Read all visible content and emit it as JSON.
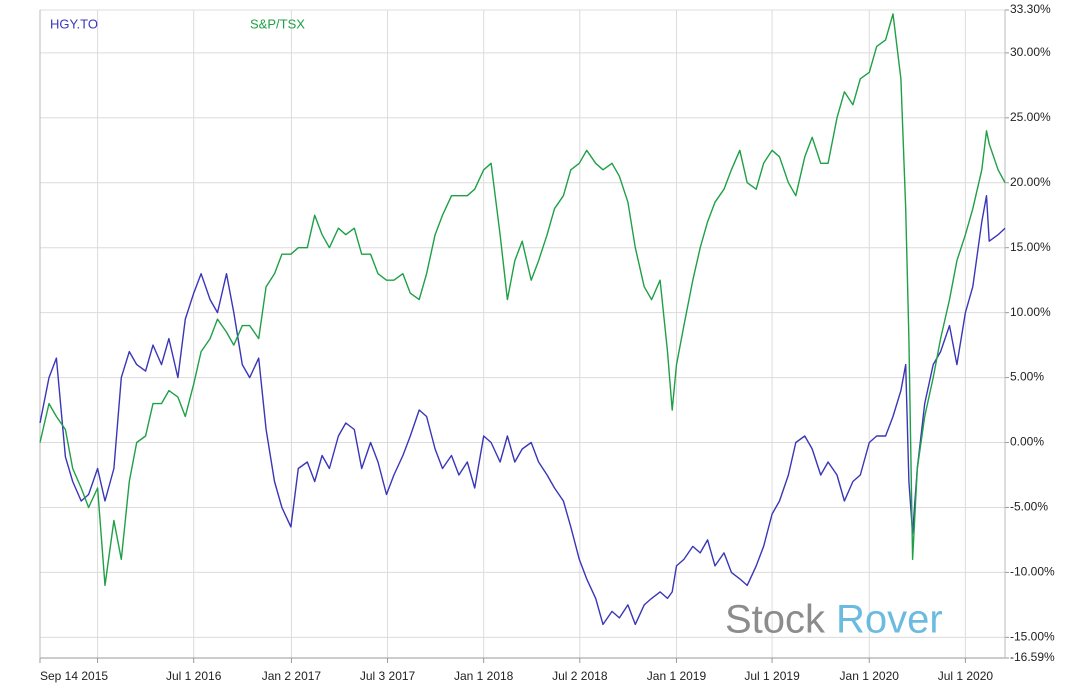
{
  "chart_data": {
    "type": "line",
    "x": [
      "2015-09-14",
      "2015-10-01",
      "2015-10-15",
      "2015-11-01",
      "2015-11-15",
      "2015-12-01",
      "2015-12-15",
      "2016-01-01",
      "2016-01-15",
      "2016-02-01",
      "2016-02-15",
      "2016-03-01",
      "2016-03-15",
      "2016-04-01",
      "2016-04-15",
      "2016-05-01",
      "2016-05-15",
      "2016-06-01",
      "2016-06-15",
      "2016-07-01",
      "2016-07-15",
      "2016-08-01",
      "2016-08-15",
      "2016-09-01",
      "2016-09-15",
      "2016-10-01",
      "2016-10-15",
      "2016-11-01",
      "2016-11-15",
      "2016-12-01",
      "2016-12-15",
      "2017-01-01",
      "2017-01-15",
      "2017-02-01",
      "2017-02-15",
      "2017-03-01",
      "2017-03-15",
      "2017-04-01",
      "2017-04-15",
      "2017-05-01",
      "2017-05-15",
      "2017-06-01",
      "2017-06-15",
      "2017-07-01",
      "2017-07-15",
      "2017-08-01",
      "2017-08-15",
      "2017-09-01",
      "2017-09-15",
      "2017-10-01",
      "2017-10-15",
      "2017-11-01",
      "2017-11-15",
      "2017-12-01",
      "2017-12-15",
      "2018-01-01",
      "2018-01-15",
      "2018-02-01",
      "2018-02-15",
      "2018-03-01",
      "2018-03-15",
      "2018-04-01",
      "2018-04-15",
      "2018-05-01",
      "2018-05-15",
      "2018-06-01",
      "2018-06-15",
      "2018-07-01",
      "2018-07-15",
      "2018-08-01",
      "2018-08-15",
      "2018-09-01",
      "2018-09-15",
      "2018-10-01",
      "2018-10-15",
      "2018-11-01",
      "2018-11-15",
      "2018-12-01",
      "2018-12-15",
      "2018-12-24",
      "2019-01-01",
      "2019-01-15",
      "2019-02-01",
      "2019-02-15",
      "2019-03-01",
      "2019-03-15",
      "2019-04-01",
      "2019-04-15",
      "2019-05-01",
      "2019-05-15",
      "2019-06-01",
      "2019-06-15",
      "2019-07-01",
      "2019-07-15",
      "2019-08-01",
      "2019-08-15",
      "2019-09-01",
      "2019-09-15",
      "2019-10-01",
      "2019-10-15",
      "2019-11-01",
      "2019-11-15",
      "2019-12-01",
      "2019-12-15",
      "2020-01-01",
      "2020-01-15",
      "2020-02-01",
      "2020-02-15",
      "2020-03-01",
      "2020-03-10",
      "2020-03-16",
      "2020-03-23",
      "2020-04-01",
      "2020-04-15",
      "2020-05-01",
      "2020-05-15",
      "2020-06-01",
      "2020-06-15",
      "2020-07-01",
      "2020-07-15",
      "2020-08-01",
      "2020-08-10",
      "2020-08-15",
      "2020-09-01",
      "2020-09-14"
    ],
    "series": [
      {
        "name": "HGY.TO",
        "color": "#3a36b8",
        "values": [
          1.5,
          5,
          6.5,
          -1.1,
          -3,
          -4.5,
          -4,
          -2,
          -4.5,
          -2,
          5,
          7,
          6,
          5.5,
          7.5,
          6,
          8,
          5,
          9.5,
          11.5,
          13,
          11,
          10,
          13,
          10,
          6,
          5,
          6.5,
          1,
          -3,
          -5,
          -6.5,
          -2,
          -1.5,
          -3,
          -1,
          -2,
          0.5,
          1.5,
          1,
          -2,
          0,
          -1.5,
          -4,
          -2.5,
          -1,
          0.5,
          2.5,
          2,
          -0.5,
          -2,
          -1,
          -2.5,
          -1.5,
          -3.5,
          0.5,
          0,
          -1.5,
          0.5,
          -1.5,
          -0.5,
          0,
          -1.5,
          -2.5,
          -3.5,
          -4.5,
          -6.5,
          -9,
          -10.5,
          -12,
          -14,
          -13,
          -13.5,
          -12.5,
          -14,
          -12.5,
          -12,
          -11.5,
          -12,
          -11.5,
          -9.5,
          -9,
          -8,
          -8.5,
          -7.5,
          -9.5,
          -8.5,
          -10,
          -10.5,
          -11,
          -9.5,
          -8,
          -5.5,
          -4.5,
          -2.5,
          0,
          0.5,
          -0.5,
          -2.5,
          -1.5,
          -2.5,
          -4.5,
          -3,
          -2.5,
          0,
          0.5,
          0.5,
          2,
          4,
          6,
          -3,
          -7,
          -2,
          3,
          6,
          7,
          9,
          6,
          10,
          12,
          17,
          19,
          15.5,
          16,
          16.5
        ]
      },
      {
        "name": "S&P/TSX",
        "color": "#1fa046",
        "values": [
          0,
          3,
          2,
          1,
          -2,
          -3.5,
          -5,
          -3.5,
          -11,
          -6,
          -9,
          -3,
          0,
          0.5,
          3,
          3,
          4,
          3.5,
          2,
          4.5,
          7,
          8,
          9.5,
          8.5,
          7.5,
          9,
          9,
          8,
          12,
          13,
          14.5,
          14.5,
          15,
          15,
          17.5,
          16,
          15,
          16.5,
          16,
          16.5,
          14.5,
          14.5,
          13,
          12.5,
          12.5,
          13,
          11.5,
          11,
          13,
          16,
          17.5,
          19,
          19,
          19,
          19.5,
          21,
          21.5,
          16,
          11,
          14,
          15.5,
          12.5,
          14,
          16,
          18,
          19,
          21,
          21.5,
          22.5,
          21.5,
          21,
          21.5,
          20.5,
          18.5,
          15,
          12,
          11,
          12.5,
          7,
          2.5,
          6,
          9,
          12.5,
          15,
          17,
          18.5,
          19.5,
          21,
          22.5,
          20,
          19.5,
          21.5,
          22.5,
          22,
          20,
          19,
          22,
          23.5,
          21.5,
          21.5,
          25,
          27,
          26,
          28,
          28.5,
          30.5,
          31,
          33,
          28,
          18,
          8,
          -9,
          -2,
          2,
          5,
          8,
          11,
          14,
          16,
          18,
          21,
          24,
          23,
          21,
          20
        ]
      }
    ],
    "xlim": [
      "2015-09-14",
      "2020-09-14"
    ],
    "xticks": [
      {
        "value": "2015-09-14",
        "label": "Sep 14 2015"
      },
      {
        "value": "2016-01-01",
        "label": null
      },
      {
        "value": "2016-07-01",
        "label": "Jul 1 2016"
      },
      {
        "value": "2017-01-02",
        "label": "Jan 2 2017"
      },
      {
        "value": "2017-07-03",
        "label": "Jul 3 2017"
      },
      {
        "value": "2018-01-01",
        "label": "Jan 1 2018"
      },
      {
        "value": "2018-07-02",
        "label": "Jul 2 2018"
      },
      {
        "value": "2019-01-01",
        "label": "Jan 1 2019"
      },
      {
        "value": "2019-07-01",
        "label": "Jul 1 2019"
      },
      {
        "value": "2020-01-01",
        "label": "Jan 1 2020"
      },
      {
        "value": "2020-07-01",
        "label": "Jul 1 2020"
      }
    ],
    "ylim": [
      -16.59,
      33.3
    ],
    "yticks": [
      {
        "value": -16.59,
        "label": "-16.59%"
      },
      {
        "value": -15,
        "label": "-15.00%"
      },
      {
        "value": -10,
        "label": "-10.00%"
      },
      {
        "value": -5,
        "label": "-5.00%"
      },
      {
        "value": 0,
        "label": "0.00%"
      },
      {
        "value": 5,
        "label": "5.00%"
      },
      {
        "value": 10,
        "label": "10.00%"
      },
      {
        "value": 15,
        "label": "15.00%"
      },
      {
        "value": 20,
        "label": "20.00%"
      },
      {
        "value": 25,
        "label": "25.00%"
      },
      {
        "value": 30,
        "label": "30.00%"
      },
      {
        "value": 33.3,
        "label": "33.30%"
      }
    ],
    "grid": true
  },
  "watermark": {
    "left": "Stock",
    "right": "Rover"
  }
}
